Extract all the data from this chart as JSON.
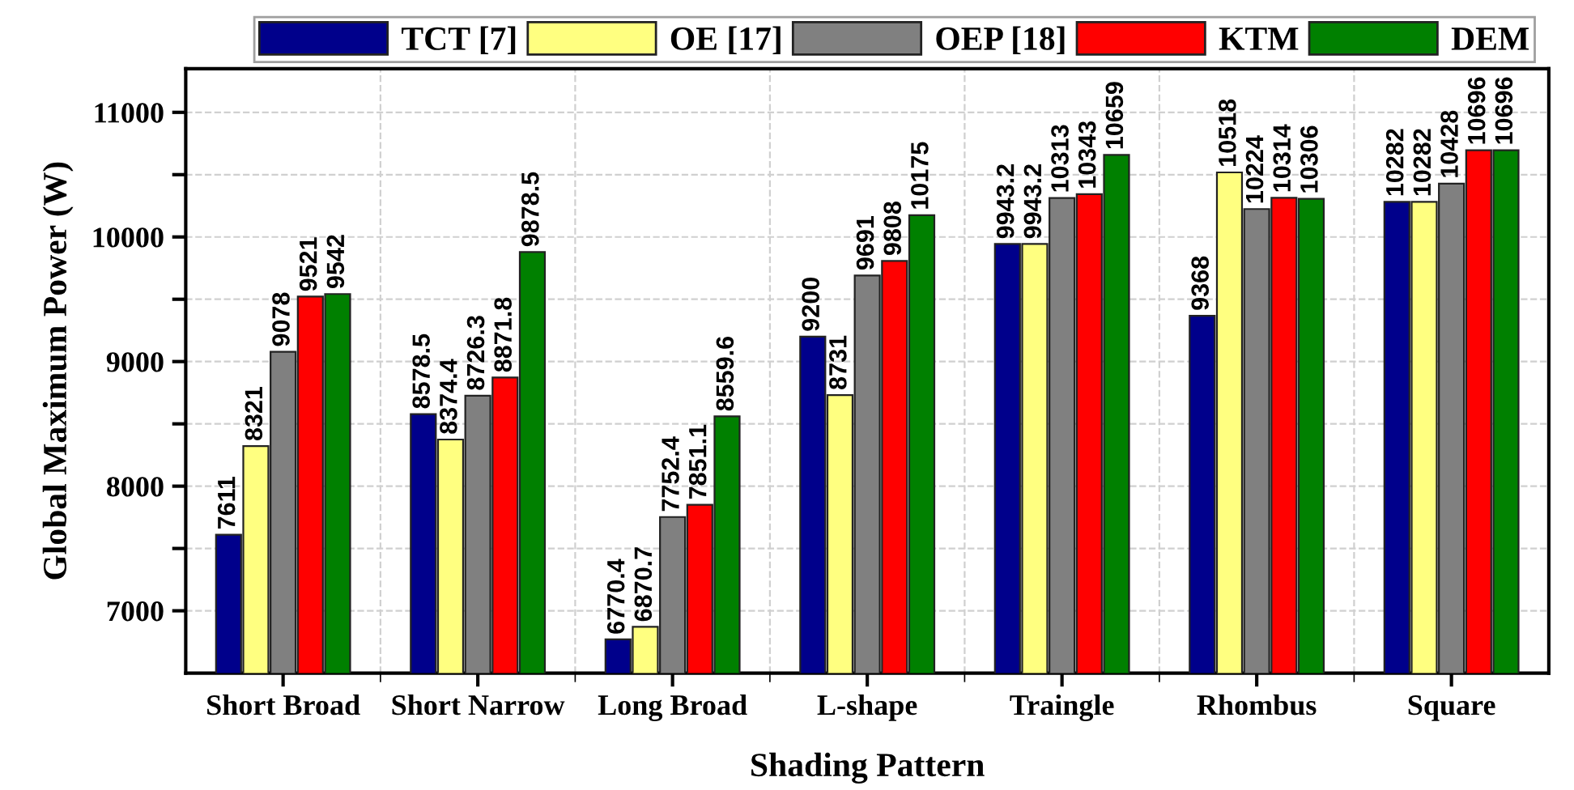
{
  "chart_data": {
    "type": "bar",
    "xlabel": "Shading Pattern",
    "ylabel": "Global Maximum Power (W)",
    "categories": [
      "Short Broad",
      "Short Narrow",
      "Long Broad",
      "L-shape",
      "Traingle",
      "Rhombus",
      "Square"
    ],
    "series": [
      {
        "name": "TCT [7]",
        "color": "#00008b",
        "values": [
          7611,
          8578.5,
          6770.4,
          9200,
          9943.2,
          9368,
          10282
        ]
      },
      {
        "name": "OE [17]",
        "color": "#ffff80",
        "values": [
          8321,
          8374.4,
          6870.7,
          8731,
          9943.2,
          10518,
          10282
        ]
      },
      {
        "name": "OEP [18]",
        "color": "#808080",
        "values": [
          9078,
          8726.3,
          7752.4,
          9691,
          10313,
          10224,
          10428
        ]
      },
      {
        "name": "KTM",
        "color": "#ff0000",
        "values": [
          9521,
          8871.8,
          7851.1,
          9808,
          10343,
          10314,
          10696
        ]
      },
      {
        "name": "DEM",
        "color": "#008000",
        "values": [
          9542,
          9878.5,
          8559.6,
          10175,
          10659,
          10306,
          10696
        ]
      }
    ],
    "ylim": [
      6500,
      11350
    ],
    "yticks": [
      7000,
      {
        "value": 7500,
        "label": null
      },
      8000,
      {
        "value": 8500,
        "label": null
      },
      9000,
      {
        "value": 9500,
        "label": null
      },
      10000,
      {
        "value": 10500,
        "label": null
      },
      11000
    ],
    "grid": true,
    "legend": "top",
    "data_labels": true
  }
}
